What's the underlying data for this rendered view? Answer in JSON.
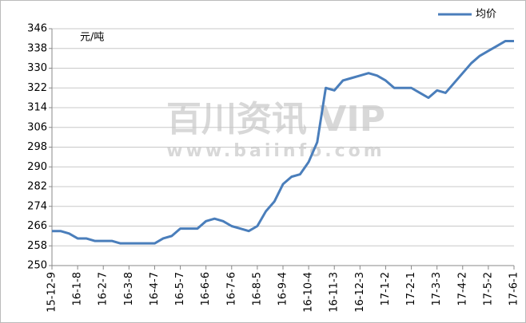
{
  "chart_data": {
    "type": "line",
    "unit_label": "元/吨",
    "watermark": [
      "百川资讯 VIP",
      "www.baiinfo.com"
    ],
    "categories": [
      "15-12-9",
      null,
      null,
      "16-1-8",
      null,
      null,
      "16-2-7",
      null,
      null,
      "16-3-8",
      null,
      null,
      "16-4-7",
      null,
      null,
      "16-5-7",
      null,
      null,
      "16-6-6",
      null,
      null,
      "16-7-6",
      null,
      null,
      "16-8-5",
      null,
      null,
      "16-9-4",
      null,
      null,
      "16-10-4",
      null,
      null,
      "16-11-3",
      null,
      null,
      "16-12-3",
      null,
      null,
      "17-1-2",
      null,
      null,
      "17-2-1",
      null,
      null,
      "17-3-3",
      null,
      null,
      "17-4-2",
      null,
      null,
      "17-5-2",
      null,
      null,
      "17-6-1"
    ],
    "series": [
      {
        "name": "均价",
        "color": "#4a7ebb",
        "values": [
          264,
          264,
          263,
          261,
          261,
          260,
          260,
          260,
          259,
          259,
          259,
          259,
          259,
          261,
          262,
          265,
          265,
          265,
          268,
          269,
          268,
          266,
          265,
          264,
          266,
          272,
          276,
          283,
          286,
          287,
          292,
          300,
          322,
          321,
          325,
          326,
          327,
          328,
          327,
          325,
          322,
          322,
          322,
          320,
          318,
          321,
          320,
          324,
          328,
          332,
          335,
          337,
          339,
          341,
          341
        ]
      }
    ],
    "ylim": [
      250,
      346
    ],
    "yticks": [
      250,
      258,
      266,
      274,
      282,
      290,
      298,
      306,
      314,
      322,
      330,
      338,
      346
    ],
    "grid": true,
    "legend": "top-right"
  }
}
